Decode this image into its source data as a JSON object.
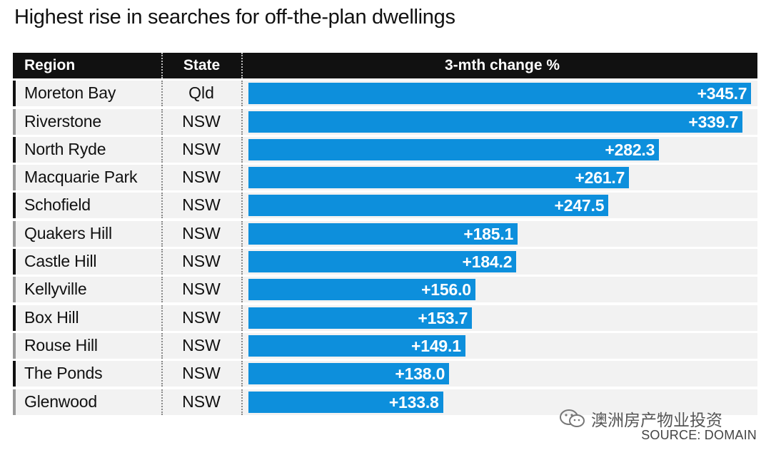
{
  "title": "Highest rise in searches for off-the-plan dwellings",
  "columns": {
    "region": "Region",
    "state": "State",
    "change": "3-mth change %"
  },
  "source": "SOURCE: DOMAIN",
  "watermark": "澳洲房产物业投资",
  "colors": {
    "bar": "#0d8fdc",
    "header": "#111111",
    "row_bg": "#f2f2f2"
  },
  "chart_data": {
    "type": "bar",
    "orientation": "horizontal",
    "title": "Highest rise in searches for off-the-plan dwellings",
    "xlabel": "3-mth change %",
    "ylabel": "",
    "xlim": [
      0,
      346
    ],
    "grid": false,
    "categories": [
      "Moreton Bay",
      "Riverstone",
      "North Ryde",
      "Macquarie Park",
      "Schofield",
      "Quakers Hill",
      "Castle Hill",
      "Kellyville",
      "Box Hill",
      "Rouse Hill",
      "The Ponds",
      "Glenwood"
    ],
    "states": [
      "Qld",
      "NSW",
      "NSW",
      "NSW",
      "NSW",
      "NSW",
      "NSW",
      "NSW",
      "NSW",
      "NSW",
      "NSW",
      "NSW"
    ],
    "values": [
      345.7,
      339.7,
      282.3,
      261.7,
      247.5,
      185.1,
      184.2,
      156.0,
      153.7,
      149.1,
      138.0,
      133.8
    ],
    "labels": [
      "+345.7",
      "+339.7",
      "+282.3",
      "+261.7",
      "+247.5",
      "+185.1",
      "+184.2",
      "+156.0",
      "+153.7",
      "+149.1",
      "+138.0",
      "+133.8"
    ]
  }
}
